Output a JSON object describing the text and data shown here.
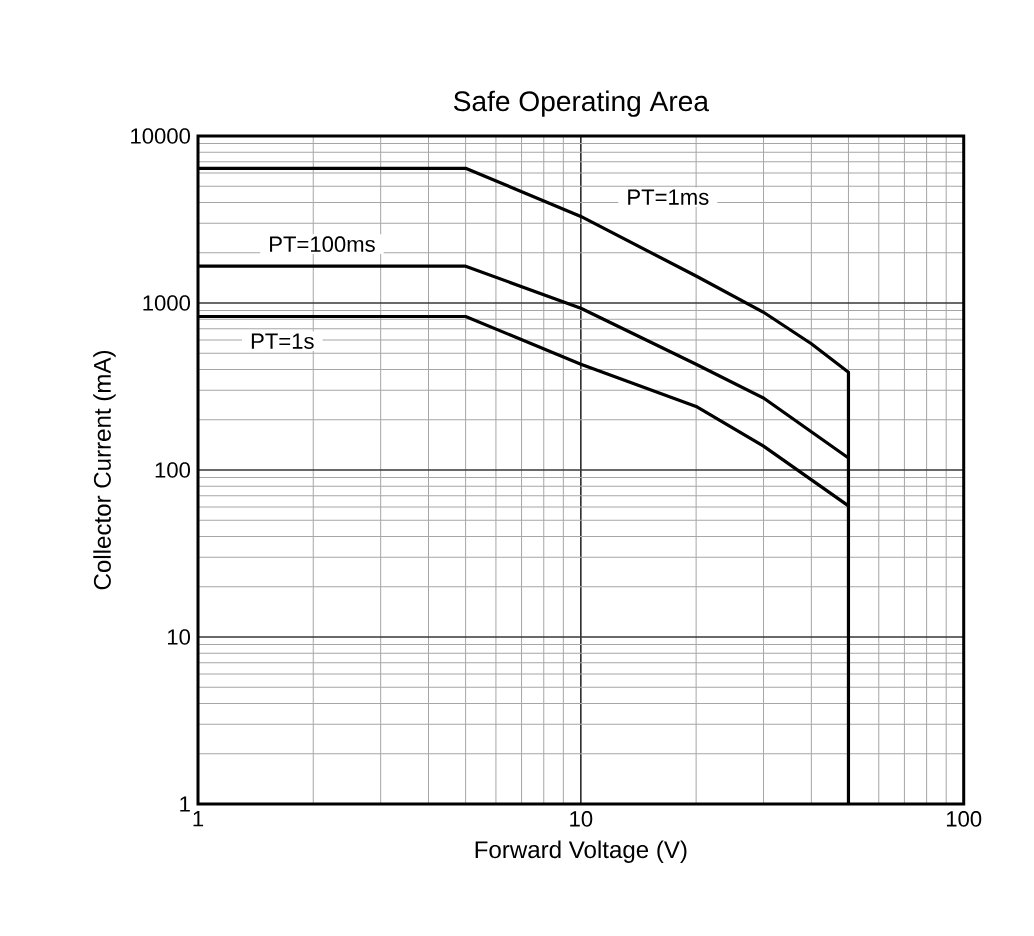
{
  "chart_data": {
    "type": "line",
    "title": "Safe Operating Area",
    "xlabel": "Forward Voltage (V)",
    "ylabel": "Collector Current (mA)",
    "log": "xy",
    "grid": true,
    "marker": "none",
    "line_style": "solid",
    "xlim": [
      1,
      100
    ],
    "xticks": [
      1,
      10,
      100
    ],
    "ylim": [
      1,
      10000
    ],
    "yticks": [
      1,
      10,
      100,
      1000,
      10000
    ],
    "series": [
      {
        "name": "PT=1ms",
        "color": "#000000",
        "x": [
          1,
          5,
          10,
          20,
          30,
          40,
          50,
          50
        ],
        "values": [
          6400,
          6400,
          3300,
          1450,
          880,
          570,
          385,
          1
        ]
      },
      {
        "name": "PT=100ms",
        "color": "#000000",
        "x": [
          1,
          5,
          10,
          20,
          30,
          50
        ],
        "values": [
          1660,
          1660,
          930,
          430,
          270,
          118
        ]
      },
      {
        "name": "PT=1s",
        "color": "#000000",
        "x": [
          1,
          5,
          10,
          20,
          30,
          50
        ],
        "values": [
          830,
          830,
          430,
          240,
          139,
          61
        ]
      }
    ]
  }
}
